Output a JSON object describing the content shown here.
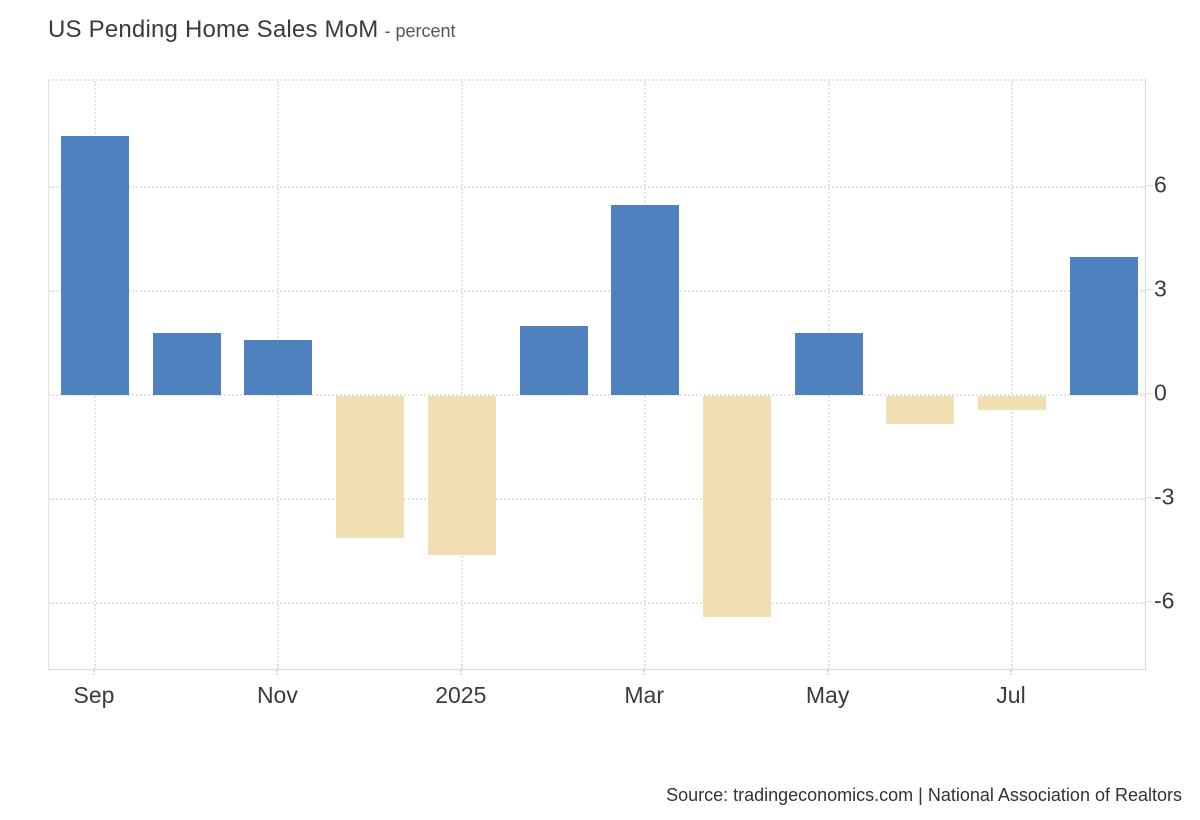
{
  "header": {
    "title": "US Pending Home Sales MoM",
    "subtitle": "- percent"
  },
  "footer": {
    "source": "Source: tradingeconomics.com | National Association of Realtors"
  },
  "chart_data": {
    "type": "bar",
    "title": "US Pending Home Sales MoM",
    "ylabel": "percent",
    "x": [
      "Sep 2024",
      "Oct 2024",
      "Nov 2024",
      "Dec 2024",
      "Jan 2025",
      "Feb 2025",
      "Mar 2025",
      "Apr 2025",
      "May 2025",
      "Jun 2025",
      "Jul 2025",
      "Aug 2025"
    ],
    "values": [
      7.5,
      1.8,
      1.6,
      -4.1,
      -4.6,
      2.0,
      5.5,
      -6.4,
      1.8,
      -0.8,
      -0.4,
      4.0
    ],
    "x_tick_labels": [
      "Sep",
      "Nov",
      "2025",
      "Mar",
      "May",
      "Jul"
    ],
    "x_tick_indices": [
      0,
      2,
      4,
      6,
      8,
      10
    ],
    "y_ticks": [
      6,
      3,
      0,
      -3,
      -6
    ],
    "ylim": [
      -8.0,
      9.1
    ],
    "grid": "dotted",
    "legend": "none",
    "colors": {
      "positive": "#4e81bd",
      "negative": "#f2deb3"
    }
  }
}
